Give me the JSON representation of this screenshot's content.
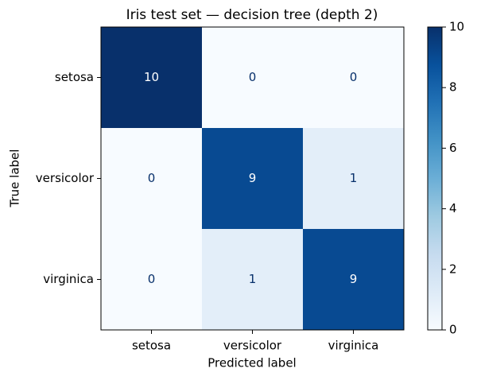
{
  "chart_data": {
    "type": "heatmap",
    "title": "Iris test set — decision tree (depth 2)",
    "x_label": "Predicted label",
    "y_label": "True label",
    "x_categories": [
      "setosa",
      "versicolor",
      "virginica"
    ],
    "y_categories": [
      "setosa",
      "versicolor",
      "virginica"
    ],
    "values": [
      [
        10,
        0,
        0
      ],
      [
        0,
        9,
        1
      ],
      [
        0,
        1,
        9
      ]
    ],
    "colormap": "Blues",
    "zlim": [
      0,
      10
    ],
    "zticks": [
      0,
      2,
      4,
      6,
      8,
      10
    ]
  }
}
